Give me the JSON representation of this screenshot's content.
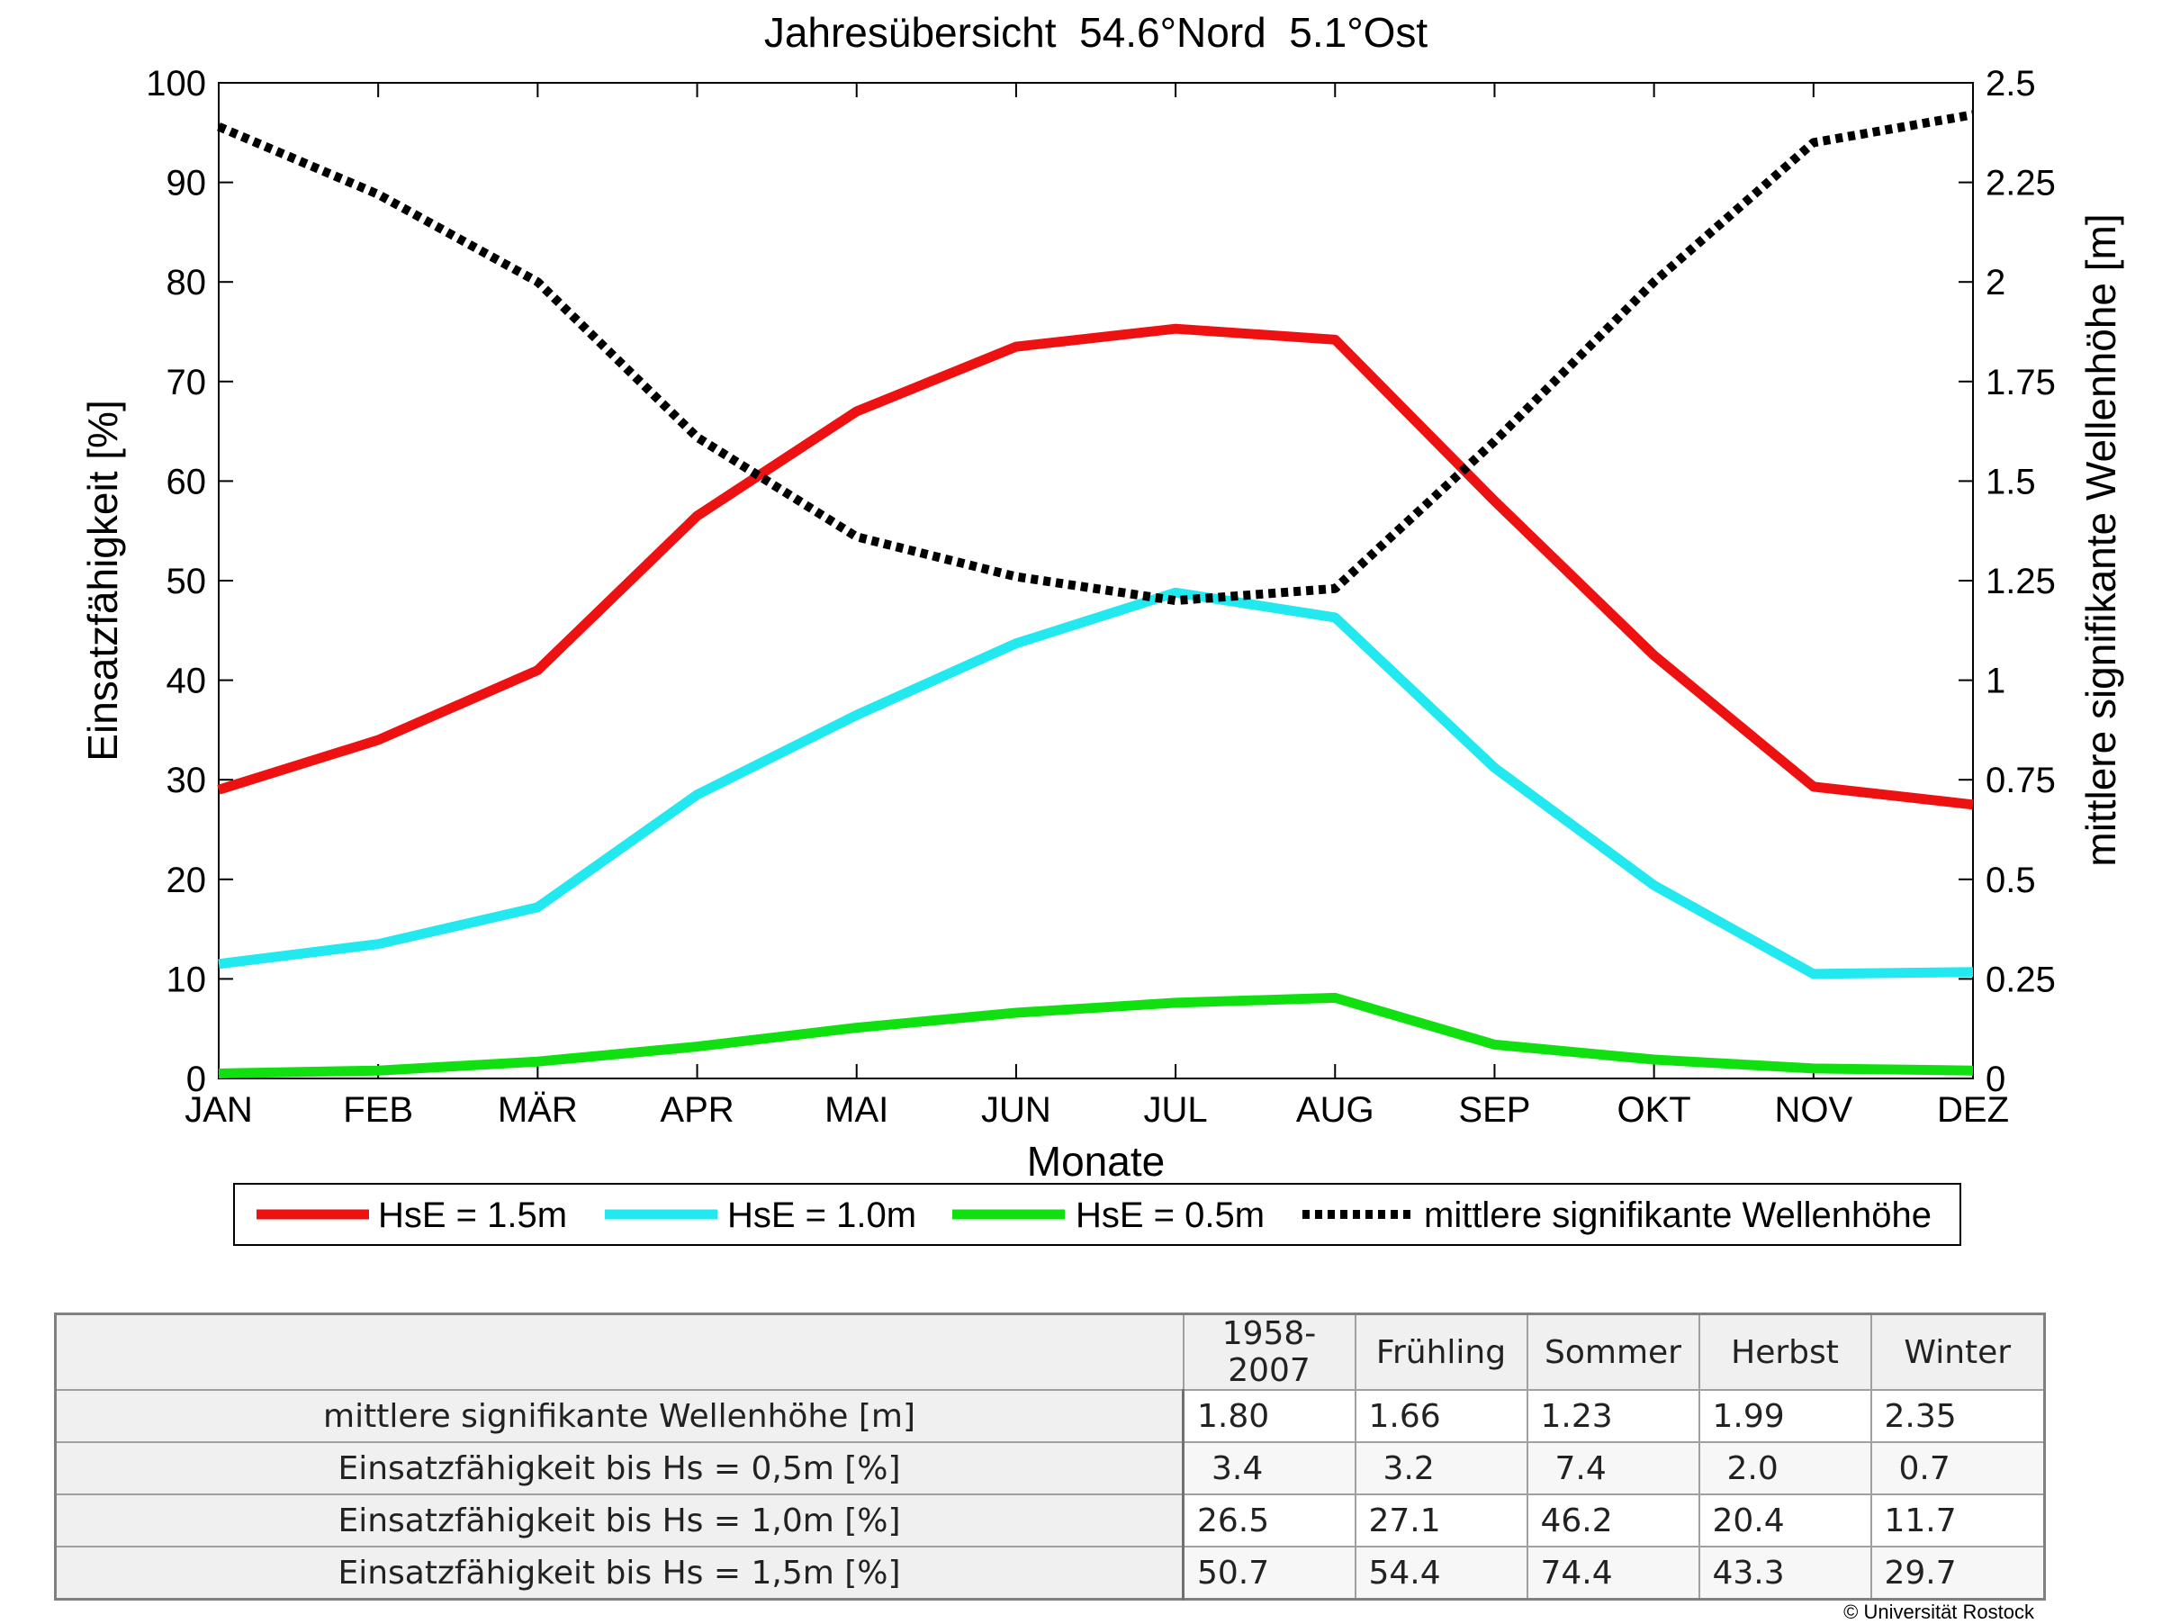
{
  "chart_data": {
    "type": "line",
    "title": "Jahresübersicht  54.6°Nord  5.1°Ost",
    "xlabel": "Monate",
    "ylabel_left": "Einsatzfähigkeit [%]",
    "ylabel_right": "mittlere signifikante Wellenhöhe [m]",
    "categories": [
      "JAN",
      "FEB",
      "MÄR",
      "APR",
      "MAI",
      "JUN",
      "JUL",
      "AUG",
      "SEP",
      "OKT",
      "NOV",
      "DEZ"
    ],
    "ylim_left": [
      0,
      100
    ],
    "yticks_left": [
      "0",
      "10",
      "20",
      "30",
      "40",
      "50",
      "60",
      "70",
      "80",
      "90",
      "100"
    ],
    "ylim_right": [
      0,
      2.5
    ],
    "yticks_right": [
      "0",
      "0.25",
      "0.5",
      "0.75",
      "1",
      "1.25",
      "1.5",
      "1.75",
      "2",
      "2.25",
      "2.5"
    ],
    "grid": false,
    "legend_position": "bottom",
    "series": [
      {
        "name": "HsE = 1.5m",
        "color": "#ee1111",
        "axis": "left",
        "style": "solid",
        "values": [
          29,
          34,
          41,
          56.5,
          67,
          73.5,
          75.3,
          74.2,
          58,
          42.5,
          29.3,
          27.5
        ]
      },
      {
        "name": "HsE = 1.0m",
        "color": "#22e8f0",
        "axis": "left",
        "style": "solid",
        "values": [
          11.5,
          13.5,
          17.2,
          28.5,
          36.5,
          43.7,
          48.8,
          46.3,
          31.2,
          19.4,
          10.5,
          10.7
        ]
      },
      {
        "name": "HsE = 0.5m",
        "color": "#10e010",
        "axis": "left",
        "style": "solid",
        "values": [
          0.5,
          0.8,
          1.7,
          3.2,
          5.1,
          6.6,
          7.6,
          8.1,
          3.4,
          1.9,
          1.0,
          0.8
        ]
      },
      {
        "name": "mittlere signifikante Wellenhöhe",
        "color": "#000000",
        "axis": "right",
        "style": "dotted",
        "values": [
          2.39,
          2.22,
          2.0,
          1.61,
          1.36,
          1.26,
          1.2,
          1.23,
          1.6,
          2.0,
          2.35,
          2.42
        ]
      }
    ]
  },
  "table": {
    "headers": [
      "",
      "1958-2007",
      "Frühling",
      "Sommer",
      "Herbst",
      "Winter"
    ],
    "rows": [
      {
        "label": "mittlere signifikante Wellenhöhe [m]",
        "values": [
          "1.80",
          "1.66",
          "1.23",
          "1.99",
          "2.35"
        ]
      },
      {
        "label": "Einsatzfähigkeit bis Hs = 0,5m [%]",
        "values": [
          "3.4",
          "3.2",
          "7.4",
          "2.0",
          "0.7"
        ]
      },
      {
        "label": "Einsatzfähigkeit bis Hs = 1,0m [%]",
        "values": [
          "26.5",
          "27.1",
          "46.2",
          "20.4",
          "11.7"
        ]
      },
      {
        "label": "Einsatzfähigkeit bis Hs = 1,5m [%]",
        "values": [
          "50.7",
          "54.4",
          "74.4",
          "43.3",
          "29.7"
        ]
      }
    ]
  },
  "copyright": "© Universität Rostock"
}
